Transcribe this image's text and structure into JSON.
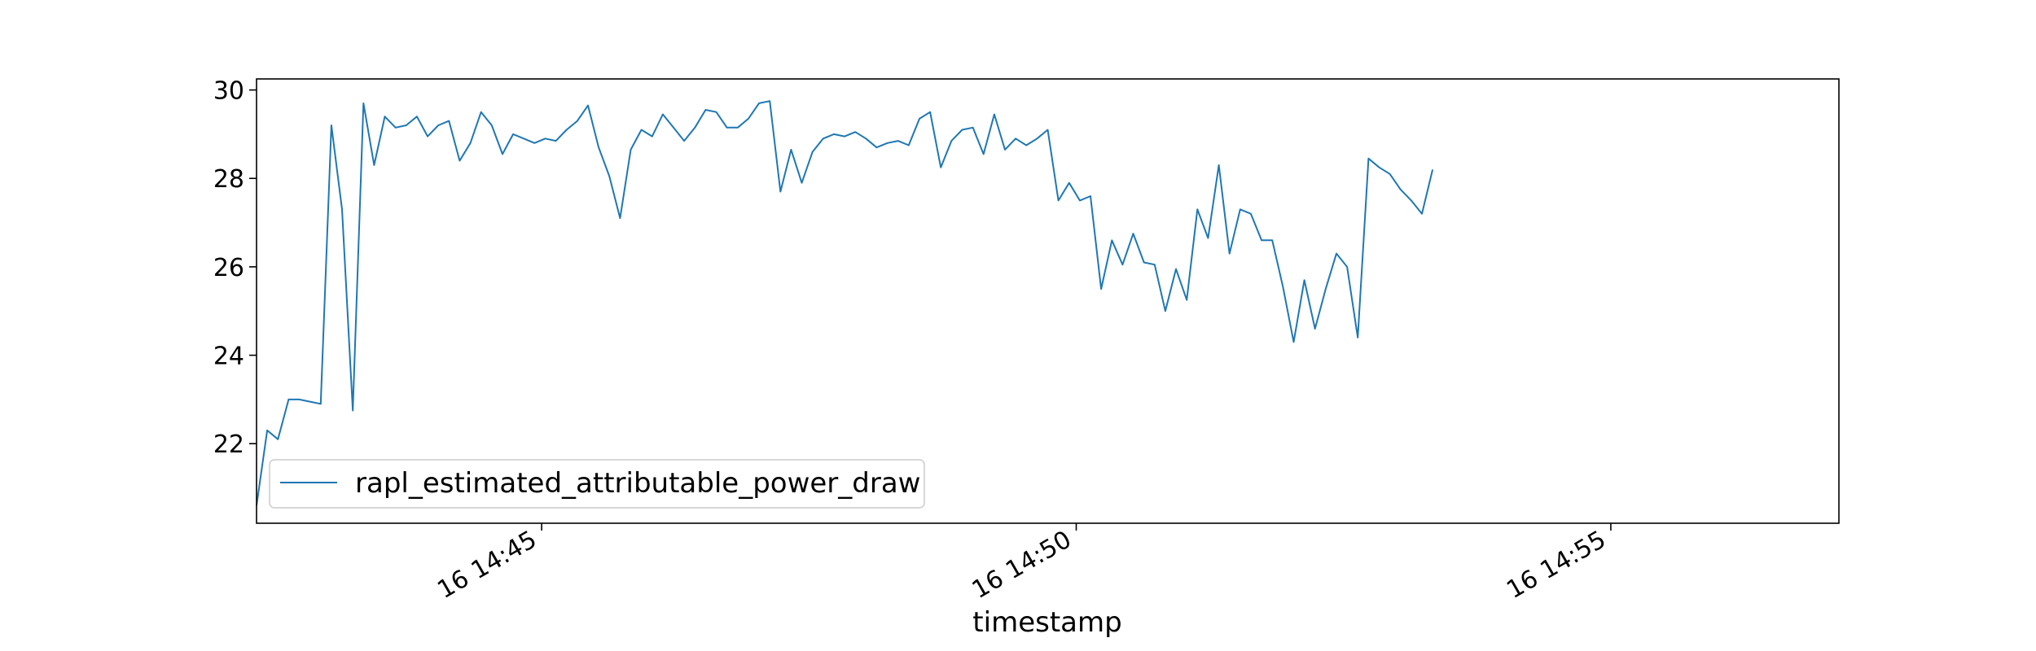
{
  "chart_data": {
    "type": "line",
    "title": "",
    "xlabel": "timestamp",
    "ylabel": "",
    "x_start": "16 14:42:20",
    "x_step_seconds": 6,
    "xlim": [
      "16 14:42:20",
      "16 14:57:08"
    ],
    "ylim": [
      20.2,
      30.25
    ],
    "x_ticks": [
      {
        "label": "16 14:45",
        "time": "16 14:45:00"
      },
      {
        "label": "16 14:50",
        "time": "16 14:50:00"
      },
      {
        "label": "16 14:55",
        "time": "16 14:55:00"
      }
    ],
    "y_ticks": [
      22,
      24,
      26,
      28,
      30
    ],
    "grid": false,
    "legend_position": "lower-left",
    "series": [
      {
        "name": "rapl_estimated_attributable_power_draw",
        "color": "#1f77b4",
        "values": [
          20.6,
          22.3,
          22.1,
          23.0,
          23.0,
          22.95,
          22.9,
          29.2,
          27.3,
          22.75,
          29.7,
          28.3,
          29.4,
          29.15,
          29.2,
          29.4,
          28.95,
          29.2,
          29.3,
          28.4,
          28.8,
          29.5,
          29.2,
          28.55,
          29.0,
          28.9,
          28.8,
          28.9,
          28.85,
          29.1,
          29.3,
          29.65,
          28.7,
          28.05,
          27.1,
          28.65,
          29.1,
          28.95,
          29.45,
          29.15,
          28.85,
          29.15,
          29.55,
          29.5,
          29.15,
          29.15,
          29.35,
          29.7,
          29.75,
          27.7,
          28.65,
          27.9,
          28.6,
          28.9,
          29.0,
          28.95,
          29.05,
          28.9,
          28.7,
          28.8,
          28.85,
          28.75,
          29.35,
          29.5,
          28.25,
          28.85,
          29.1,
          29.15,
          28.55,
          29.45,
          28.65,
          28.9,
          28.75,
          28.9,
          29.1,
          27.5,
          27.9,
          27.5,
          27.6,
          25.5,
          26.6,
          26.05,
          26.75,
          26.1,
          26.05,
          25.0,
          25.95,
          25.25,
          27.3,
          26.65,
          28.3,
          26.3,
          27.3,
          27.2,
          26.6,
          26.6,
          25.55,
          24.3,
          25.7,
          24.6,
          25.5,
          26.3,
          26.0,
          24.4,
          28.45,
          28.25,
          28.1,
          27.75,
          27.5,
          27.2,
          28.2
        ]
      }
    ]
  }
}
